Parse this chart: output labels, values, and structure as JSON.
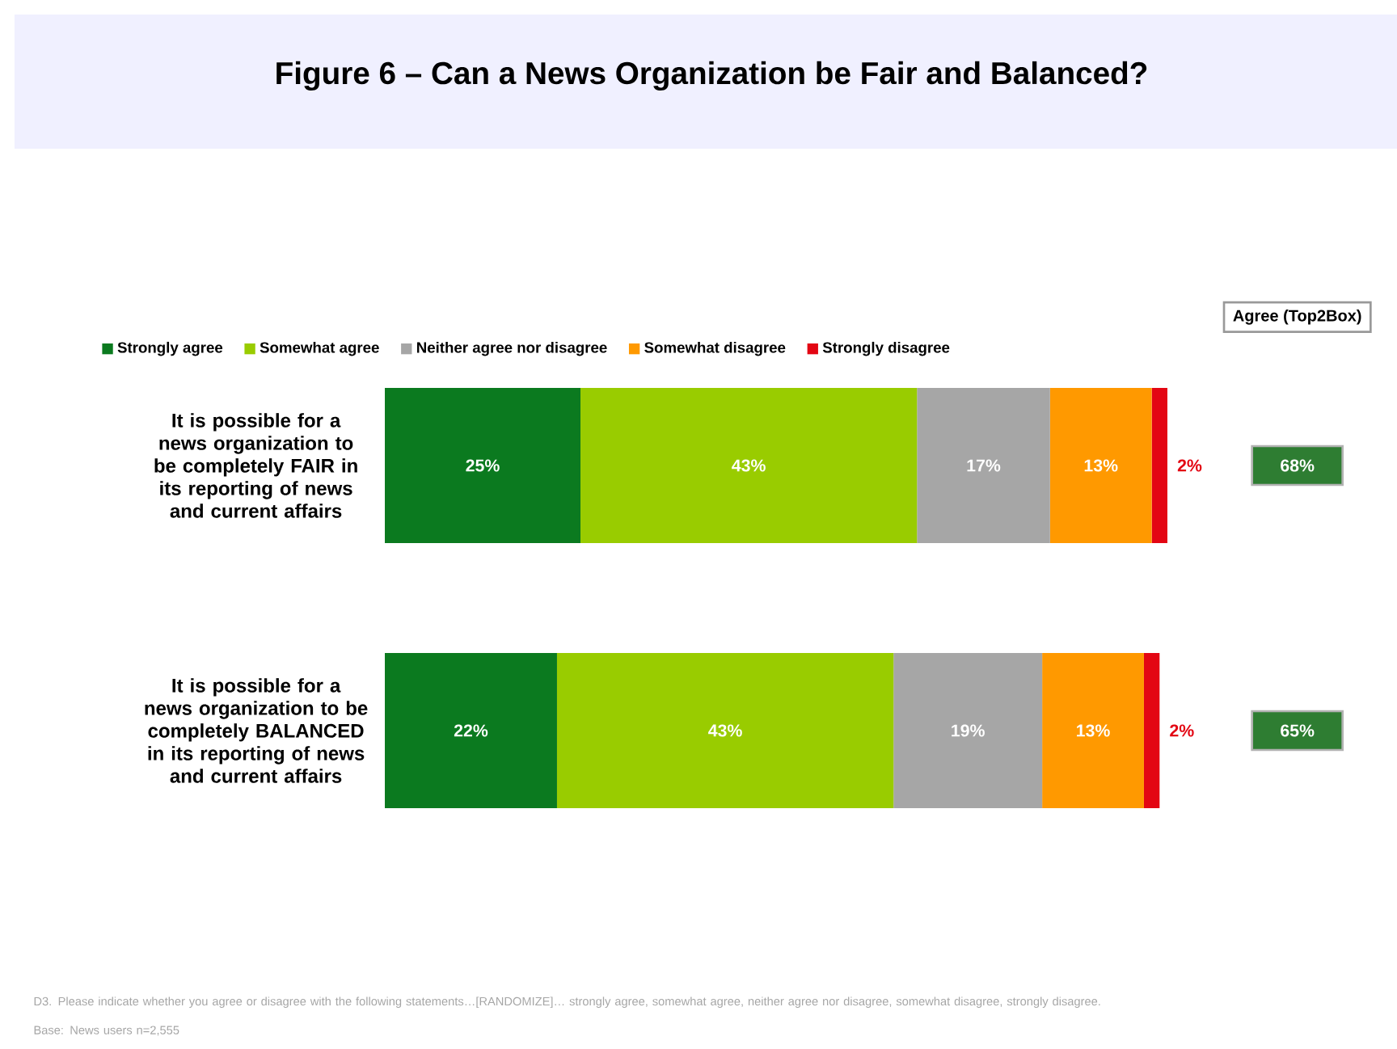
{
  "chart_data": {
    "type": "bar",
    "orientation": "horizontal",
    "stacked": true,
    "title": "Figure 6 – Can a News Organization be Fair and Balanced?",
    "categories": [
      "It is possible for a news organization to be completely FAIR in its reporting of news and current affairs",
      "It is possible for a news organization to be completely BALANCED in its reporting of news and current affairs"
    ],
    "series": [
      {
        "name": "Strongly agree",
        "color": "#0b7a1f",
        "values": [
          25,
          22
        ],
        "value_labels": [
          "25%",
          "22%"
        ]
      },
      {
        "name": "Somewhat agree",
        "color": "#99cc00",
        "values": [
          43,
          43
        ],
        "value_labels": [
          "43%",
          "43%"
        ]
      },
      {
        "name": "Neither agree nor disagree",
        "color": "#a6a6a6",
        "values": [
          17,
          19
        ],
        "value_labels": [
          "17%",
          "19%"
        ]
      },
      {
        "name": "Somewhat disagree",
        "color": "#ff9900",
        "values": [
          13,
          13
        ],
        "value_labels": [
          "13%",
          "13%"
        ]
      },
      {
        "name": "Strongly disagree",
        "color": "#e30613",
        "values": [
          2,
          2
        ],
        "value_labels": [
          "2%",
          "2%"
        ]
      }
    ],
    "legend": "top",
    "annotations": [
      "Agree (Top2Box)",
      "68%",
      "65%",
      "D3. Please indicate whether you agree or disagree with the following statements…[RANDOMIZE]… strongly agree, somewhat agree, neither agree nor disagree, somewhat disagree, strongly disagree.",
      "Base: News users n=2,555"
    ]
  }
}
